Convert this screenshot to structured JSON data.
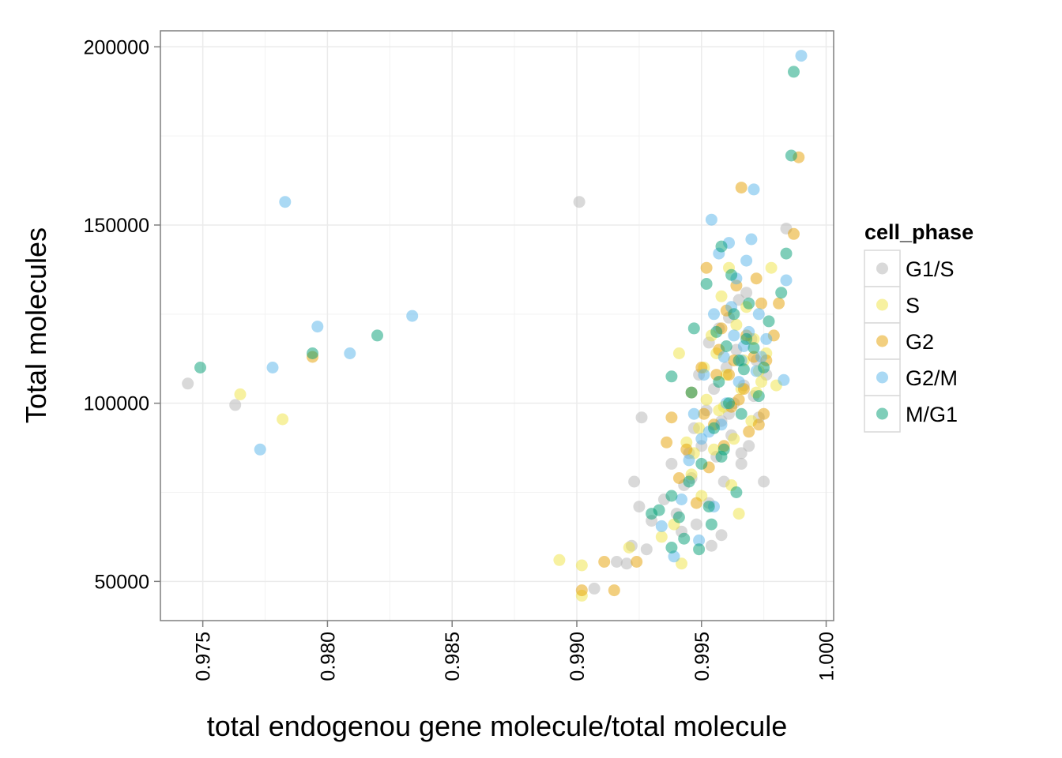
{
  "chart_data": {
    "type": "scatter",
    "title": "",
    "xlabel": "total endogenou gene molecule/total molecule",
    "ylabel": "Total molecules",
    "xlim": [
      0.9733,
      1.0003
    ],
    "ylim": [
      39000,
      204500
    ],
    "x_ticks": [
      0.975,
      0.98,
      0.985,
      0.99,
      0.995,
      1.0
    ],
    "x_tick_labels": [
      "0.975",
      "0.980",
      "0.985",
      "0.990",
      "0.995",
      "1.000"
    ],
    "y_ticks": [
      50000,
      100000,
      150000,
      200000
    ],
    "y_tick_labels": [
      "50000",
      "100000",
      "150000",
      "200000"
    ],
    "grid": true,
    "legend": {
      "title": "cell_phase",
      "position": "right"
    },
    "series": [
      {
        "name": "G1/S",
        "color": "#b3b3b3",
        "points": [
          [
            0.9744,
            105500
          ],
          [
            0.9763,
            99500
          ],
          [
            0.9901,
            156500
          ],
          [
            0.9907,
            48000
          ],
          [
            0.9916,
            55500
          ],
          [
            0.992,
            55000
          ],
          [
            0.9923,
            78000
          ],
          [
            0.9926,
            96000
          ],
          [
            0.9922,
            60000
          ],
          [
            0.9925,
            71000
          ],
          [
            0.9928,
            59000
          ],
          [
            0.993,
            67000
          ],
          [
            0.9935,
            73000
          ],
          [
            0.9938,
            83000
          ],
          [
            0.994,
            69000
          ],
          [
            0.9943,
            77000
          ],
          [
            0.9945,
            86000
          ],
          [
            0.9947,
            93000
          ],
          [
            0.9948,
            66000
          ],
          [
            0.995,
            88000
          ],
          [
            0.9952,
            98000
          ],
          [
            0.9953,
            72000
          ],
          [
            0.9954,
            60000
          ],
          [
            0.9955,
            104000
          ],
          [
            0.9956,
            85000
          ],
          [
            0.9957,
            121000
          ],
          [
            0.9958,
            95000
          ],
          [
            0.9959,
            78000
          ],
          [
            0.996,
            110000
          ],
          [
            0.9961,
            124000
          ],
          [
            0.9962,
            91000
          ],
          [
            0.9963,
            100000
          ],
          [
            0.9964,
            115000
          ],
          [
            0.9965,
            129000
          ],
          [
            0.9966,
            83000
          ],
          [
            0.9967,
            105000
          ],
          [
            0.9968,
            131000
          ],
          [
            0.9969,
            88000
          ],
          [
            0.997,
            118000
          ],
          [
            0.9971,
            102000
          ],
          [
            0.9972,
            112000
          ],
          [
            0.9973,
            96000
          ],
          [
            0.9975,
            78000
          ],
          [
            0.9976,
            108000
          ],
          [
            0.9984,
            149000
          ],
          [
            0.9949,
            108000
          ],
          [
            0.9953,
            117000
          ],
          [
            0.9946,
            79000
          ],
          [
            0.9942,
            64000
          ],
          [
            0.9966,
            86000
          ],
          [
            0.9958,
            63000
          ],
          [
            0.9961,
            97000
          ]
        ]
      },
      {
        "name": "S",
        "color": "#f0e442",
        "points": [
          [
            0.9765,
            102500
          ],
          [
            0.9782,
            95500
          ],
          [
            0.9893,
            56000
          ],
          [
            0.9902,
            54500
          ],
          [
            0.9902,
            46000
          ],
          [
            0.9921,
            59500
          ],
          [
            0.9934,
            62500
          ],
          [
            0.9939,
            66000
          ],
          [
            0.9941,
            114000
          ],
          [
            0.9942,
            55000
          ],
          [
            0.9944,
            89000
          ],
          [
            0.9946,
            80000
          ],
          [
            0.9949,
            93000
          ],
          [
            0.995,
            74000
          ],
          [
            0.9952,
            101000
          ],
          [
            0.9954,
            119000
          ],
          [
            0.9955,
            87000
          ],
          [
            0.9957,
            98000
          ],
          [
            0.9958,
            130000
          ],
          [
            0.996,
            108000
          ],
          [
            0.9961,
            138000
          ],
          [
            0.9962,
            77000
          ],
          [
            0.9963,
            90000
          ],
          [
            0.9964,
            122000
          ],
          [
            0.9965,
            69000
          ],
          [
            0.9966,
            104000
          ],
          [
            0.9967,
            112000
          ],
          [
            0.9968,
            127000
          ],
          [
            0.997,
            95000
          ],
          [
            0.9971,
            118000
          ],
          [
            0.9972,
            103000
          ],
          [
            0.9973,
            109000
          ],
          [
            0.9974,
            106000
          ],
          [
            0.9976,
            114000
          ],
          [
            0.9978,
            138000
          ],
          [
            0.998,
            105000
          ],
          [
            0.9951,
            110000
          ],
          [
            0.9947,
            86000
          ],
          [
            0.9956,
            114000
          ],
          [
            0.9959,
            99000
          ]
        ]
      },
      {
        "name": "G2",
        "color": "#e69f00",
        "points": [
          [
            0.9794,
            113000
          ],
          [
            0.9902,
            47500
          ],
          [
            0.9911,
            55500
          ],
          [
            0.9915,
            47500
          ],
          [
            0.9924,
            55500
          ],
          [
            0.9936,
            89000
          ],
          [
            0.9938,
            96000
          ],
          [
            0.9941,
            79000
          ],
          [
            0.9944,
            87000
          ],
          [
            0.9946,
            103000
          ],
          [
            0.9948,
            72000
          ],
          [
            0.995,
            110000
          ],
          [
            0.9952,
            138000
          ],
          [
            0.9953,
            82000
          ],
          [
            0.9955,
            94000
          ],
          [
            0.9956,
            108000
          ],
          [
            0.9957,
            115000
          ],
          [
            0.9959,
            88000
          ],
          [
            0.996,
            126000
          ],
          [
            0.9962,
            99000
          ],
          [
            0.9963,
            112000
          ],
          [
            0.9964,
            133000
          ],
          [
            0.9966,
            160500
          ],
          [
            0.9967,
            104000
          ],
          [
            0.9968,
            119000
          ],
          [
            0.9969,
            92000
          ],
          [
            0.9971,
            113000
          ],
          [
            0.9972,
            135000
          ],
          [
            0.9974,
            128000
          ],
          [
            0.9975,
            97000
          ],
          [
            0.9976,
            112000
          ],
          [
            0.9979,
            119000
          ],
          [
            0.9981,
            128000
          ],
          [
            0.9987,
            147500
          ],
          [
            0.9989,
            169000
          ],
          [
            0.9958,
            121000
          ],
          [
            0.9951,
            97000
          ],
          [
            0.9965,
            101000
          ],
          [
            0.9973,
            94000
          ],
          [
            0.9961,
            108000
          ]
        ]
      },
      {
        "name": "G2/M",
        "color": "#56b4e9",
        "points": [
          [
            0.9773,
            87000
          ],
          [
            0.9778,
            110000
          ],
          [
            0.9783,
            156500
          ],
          [
            0.9796,
            121500
          ],
          [
            0.9809,
            114000
          ],
          [
            0.9834,
            124500
          ],
          [
            0.9934,
            65500
          ],
          [
            0.9939,
            57000
          ],
          [
            0.9942,
            73000
          ],
          [
            0.9945,
            84000
          ],
          [
            0.9947,
            97000
          ],
          [
            0.9949,
            61500
          ],
          [
            0.9951,
            108000
          ],
          [
            0.9953,
            92000
          ],
          [
            0.9954,
            151500
          ],
          [
            0.9955,
            125000
          ],
          [
            0.9957,
            142000
          ],
          [
            0.9959,
            113000
          ],
          [
            0.996,
            100000
          ],
          [
            0.9961,
            145000
          ],
          [
            0.9963,
            119000
          ],
          [
            0.9964,
            135000
          ],
          [
            0.9965,
            106000
          ],
          [
            0.9967,
            116000
          ],
          [
            0.9968,
            140000
          ],
          [
            0.9969,
            120000
          ],
          [
            0.997,
            146000
          ],
          [
            0.9971,
            160000
          ],
          [
            0.9972,
            109000
          ],
          [
            0.9973,
            125000
          ],
          [
            0.9974,
            113000
          ],
          [
            0.9976,
            118000
          ],
          [
            0.9983,
            106500
          ],
          [
            0.9984,
            134500
          ],
          [
            0.999,
            197500
          ],
          [
            0.9958,
            94000
          ],
          [
            0.995,
            90000
          ],
          [
            0.9962,
            127000
          ],
          [
            0.9955,
            71000
          ],
          [
            0.9966,
            112000
          ]
        ]
      },
      {
        "name": "M/G1",
        "color": "#009e73",
        "points": [
          [
            0.9749,
            110000
          ],
          [
            0.9794,
            114000
          ],
          [
            0.982,
            119000
          ],
          [
            0.993,
            69000
          ],
          [
            0.9933,
            70000
          ],
          [
            0.9938,
            74000
          ],
          [
            0.9938,
            59500
          ],
          [
            0.9938,
            107500
          ],
          [
            0.9941,
            68000
          ],
          [
            0.9943,
            62000
          ],
          [
            0.9945,
            78000
          ],
          [
            0.9946,
            103000
          ],
          [
            0.9947,
            121000
          ],
          [
            0.9949,
            59000
          ],
          [
            0.995,
            83000
          ],
          [
            0.9952,
            133500
          ],
          [
            0.9953,
            71000
          ],
          [
            0.9955,
            93000
          ],
          [
            0.9956,
            120000
          ],
          [
            0.9957,
            106000
          ],
          [
            0.9958,
            144000
          ],
          [
            0.9959,
            87000
          ],
          [
            0.996,
            116000
          ],
          [
            0.9961,
            100000
          ],
          [
            0.9962,
            136000
          ],
          [
            0.9963,
            125000
          ],
          [
            0.9964,
            75000
          ],
          [
            0.9965,
            112000
          ],
          [
            0.9966,
            97000
          ],
          [
            0.9967,
            109500
          ],
          [
            0.9968,
            118000
          ],
          [
            0.9969,
            128000
          ],
          [
            0.9971,
            115500
          ],
          [
            0.9973,
            102000
          ],
          [
            0.9975,
            110000
          ],
          [
            0.9977,
            123000
          ],
          [
            0.9982,
            131000
          ],
          [
            0.9984,
            142000
          ],
          [
            0.9986,
            169500
          ],
          [
            0.9987,
            193000
          ],
          [
            0.9954,
            66000
          ],
          [
            0.9958,
            85000
          ]
        ]
      }
    ]
  }
}
